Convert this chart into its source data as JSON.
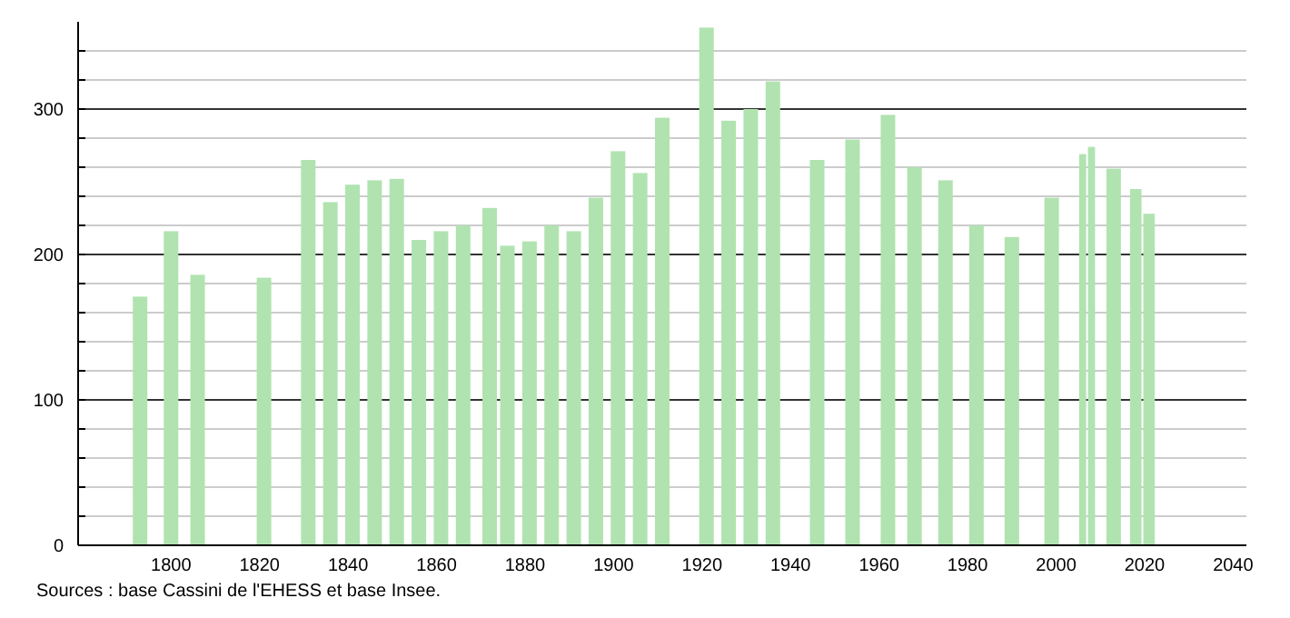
{
  "chart_data": {
    "type": "bar",
    "x": [
      1793,
      1800,
      1806,
      1821,
      1831,
      1836,
      1841,
      1846,
      1851,
      1856,
      1861,
      1866,
      1872,
      1876,
      1881,
      1886,
      1891,
      1896,
      1901,
      1906,
      1911,
      1921,
      1926,
      1931,
      1936,
      1946,
      1954,
      1962,
      1968,
      1975,
      1982,
      1990,
      1999,
      2006,
      2008,
      2013,
      2018,
      2021
    ],
    "values": [
      171,
      216,
      186,
      184,
      265,
      236,
      248,
      251,
      252,
      210,
      216,
      220,
      232,
      206,
      209,
      220,
      216,
      239,
      271,
      256,
      294,
      356,
      292,
      300,
      319,
      265,
      279,
      296,
      260,
      251,
      220,
      212,
      239,
      269,
      274,
      259,
      245,
      228
    ],
    "color": "#b0e3b0",
    "xlim": [
      1779,
      2043
    ],
    "xticks": [
      1800,
      1820,
      1840,
      1860,
      1880,
      1900,
      1920,
      1940,
      1960,
      1980,
      2000,
      2020,
      2040
    ],
    "ylim": [
      0,
      360
    ],
    "yticks": [
      0,
      {
        "value": 20,
        "label": null
      },
      {
        "value": 40,
        "label": null
      },
      {
        "value": 60,
        "label": null
      },
      {
        "value": 80,
        "label": null
      },
      100,
      {
        "value": 120,
        "label": null
      },
      {
        "value": 140,
        "label": null
      },
      {
        "value": 160,
        "label": null
      },
      {
        "value": 180,
        "label": null
      },
      200,
      {
        "value": 220,
        "label": null
      },
      {
        "value": 240,
        "label": null
      },
      {
        "value": 260,
        "label": null
      },
      {
        "value": 280,
        "label": null
      },
      300,
      {
        "value": 320,
        "label": null
      },
      {
        "value": 340,
        "label": null
      }
    ],
    "grid": true,
    "annotations": [
      "Sources : base Cassini de l'EHESS et base Insee."
    ]
  }
}
